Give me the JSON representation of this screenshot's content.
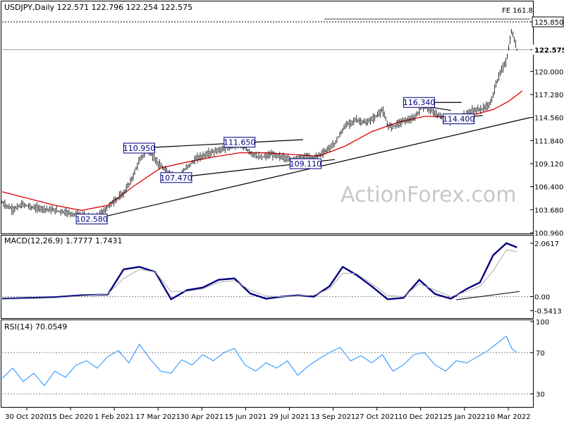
{
  "chart_data": [
    {
      "type": "candlestick",
      "header": "USDJPY,Daily  122.571 122.796 122.254 122.575",
      "ylim": [
        100.96,
        126.6
      ],
      "y_ticks": [
        100.96,
        103.68,
        106.4,
        109.12,
        111.84,
        114.56,
        117.28,
        120.0,
        122.575,
        125.85
      ],
      "y_tick_labels": [
        "100.960",
        "103.680",
        "106.400",
        "109.120",
        "111.840",
        "114.560",
        "117.280",
        "120.000",
        "122.575",
        "125.850"
      ],
      "last_price": 122.575,
      "fe_level": 125.85,
      "fe_label": "FE 161.8",
      "watermark": "ActionForex.com",
      "price_labels": [
        {
          "text": "102.580",
          "value": 102.58,
          "t": 0.175
        },
        {
          "text": "110.950",
          "value": 110.95,
          "t": 0.265
        },
        {
          "text": "107.470",
          "value": 107.47,
          "t": 0.335
        },
        {
          "text": "111.650",
          "value": 111.65,
          "t": 0.455
        },
        {
          "text": "109.110",
          "value": 109.11,
          "t": 0.58
        },
        {
          "text": "116.340",
          "value": 116.34,
          "t": 0.795
        },
        {
          "text": "114.400",
          "value": 114.4,
          "t": 0.87
        }
      ],
      "price": [
        [
          0,
          104.5
        ],
        [
          0.02,
          103.7
        ],
        [
          0.04,
          104.3
        ],
        [
          0.06,
          103.9
        ],
        [
          0.08,
          103.8
        ],
        [
          0.1,
          103.6
        ],
        [
          0.12,
          103.4
        ],
        [
          0.14,
          103.1
        ],
        [
          0.16,
          102.9
        ],
        [
          0.175,
          102.6
        ],
        [
          0.19,
          103.4
        ],
        [
          0.21,
          104.6
        ],
        [
          0.23,
          105.6
        ],
        [
          0.245,
          107.2
        ],
        [
          0.26,
          109.5
        ],
        [
          0.275,
          110.7
        ],
        [
          0.29,
          109.6
        ],
        [
          0.305,
          108.5
        ],
        [
          0.32,
          107.9
        ],
        [
          0.335,
          107.6
        ],
        [
          0.35,
          108.7
        ],
        [
          0.37,
          109.8
        ],
        [
          0.39,
          110.3
        ],
        [
          0.41,
          110.7
        ],
        [
          0.43,
          111.1
        ],
        [
          0.45,
          111.5
        ],
        [
          0.47,
          110.4
        ],
        [
          0.49,
          109.8
        ],
        [
          0.51,
          110.2
        ],
        [
          0.53,
          109.9
        ],
        [
          0.55,
          109.6
        ],
        [
          0.57,
          109.9
        ],
        [
          0.59,
          109.8
        ],
        [
          0.61,
          110.5
        ],
        [
          0.63,
          111.5
        ],
        [
          0.65,
          113.6
        ],
        [
          0.67,
          114.3
        ],
        [
          0.69,
          113.9
        ],
        [
          0.71,
          114.8
        ],
        [
          0.72,
          115.5
        ],
        [
          0.73,
          113.6
        ],
        [
          0.74,
          113.5
        ],
        [
          0.76,
          114.2
        ],
        [
          0.78,
          114.4
        ],
        [
          0.795,
          115.9
        ],
        [
          0.81,
          115.6
        ],
        [
          0.83,
          114.6
        ],
        [
          0.85,
          114.0
        ],
        [
          0.87,
          114.6
        ],
        [
          0.89,
          115.4
        ],
        [
          0.91,
          115.6
        ],
        [
          0.925,
          116.2
        ],
        [
          0.935,
          118.4
        ],
        [
          0.945,
          120.1
        ],
        [
          0.955,
          121.2
        ],
        [
          0.965,
          124.8
        ],
        [
          0.975,
          122.6
        ]
      ],
      "ma": [
        [
          0,
          105.8
        ],
        [
          0.05,
          105.0
        ],
        [
          0.1,
          104.2
        ],
        [
          0.15,
          103.6
        ],
        [
          0.2,
          104.2
        ],
        [
          0.25,
          106.5
        ],
        [
          0.3,
          108.6
        ],
        [
          0.35,
          109.3
        ],
        [
          0.4,
          109.9
        ],
        [
          0.45,
          110.4
        ],
        [
          0.5,
          110.4
        ],
        [
          0.55,
          110.2
        ],
        [
          0.6,
          110.0
        ],
        [
          0.65,
          111.2
        ],
        [
          0.7,
          112.9
        ],
        [
          0.75,
          114.0
        ],
        [
          0.8,
          114.7
        ],
        [
          0.85,
          114.6
        ],
        [
          0.9,
          115.0
        ],
        [
          0.93,
          115.5
        ],
        [
          0.96,
          116.5
        ],
        [
          0.985,
          117.7
        ]
      ],
      "trendlines": [
        [
          [
            0.175,
            102.6
          ],
          [
            1.0,
            114.56
          ]
        ],
        [
          [
            0.26,
            110.95
          ],
          [
            0.57,
            111.95
          ]
        ],
        [
          [
            0.32,
            107.4
          ],
          [
            0.63,
            109.6
          ]
        ],
        [
          [
            0.78,
            116.34
          ],
          [
            0.87,
            116.34
          ]
        ],
        [
          [
            0.8,
            115.9
          ],
          [
            0.85,
            115.4
          ]
        ],
        [
          [
            0.84,
            114.4
          ],
          [
            0.91,
            114.8
          ]
        ]
      ],
      "x_ticks": [
        "30 Oct 2020",
        "15 Dec 2020",
        "1 Feb 2021",
        "17 Mar 2021",
        "30 Apr 2021",
        "15 Jun 2021",
        "29 Jul 2021",
        "13 Sep 2021",
        "27 Oct 2021",
        "10 Dec 2021",
        "25 Jan 2022",
        "10 Mar 2022"
      ],
      "colors": {
        "price": "#000000",
        "ma": "#e00000"
      }
    },
    {
      "type": "line",
      "header": "MACD(12,26,9) 1.7777 1.7431",
      "ylim": [
        -0.8,
        2.3
      ],
      "y_tick_labels": [
        "2.0617",
        "0.00",
        "-0.5413"
      ],
      "y_ticks": [
        2.0617,
        0.0,
        -0.5413
      ],
      "series": [
        {
          "values": [
            [
              0,
              -0.08
            ],
            [
              0.05,
              -0.05
            ],
            [
              0.1,
              -0.02
            ],
            [
              0.15,
              0.05
            ],
            [
              0.2,
              0.08
            ],
            [
              0.23,
              1.05
            ],
            [
              0.26,
              1.15
            ],
            [
              0.29,
              0.95
            ],
            [
              0.32,
              -0.1
            ],
            [
              0.35,
              0.25
            ],
            [
              0.38,
              0.35
            ],
            [
              0.41,
              0.65
            ],
            [
              0.44,
              0.7
            ],
            [
              0.47,
              0.12
            ],
            [
              0.5,
              -0.08
            ],
            [
              0.53,
              0.0
            ],
            [
              0.56,
              0.05
            ],
            [
              0.59,
              0.0
            ],
            [
              0.62,
              0.4
            ],
            [
              0.645,
              1.15
            ],
            [
              0.67,
              0.85
            ],
            [
              0.7,
              0.4
            ],
            [
              0.73,
              -0.1
            ],
            [
              0.76,
              -0.05
            ],
            [
              0.79,
              0.65
            ],
            [
              0.82,
              0.1
            ],
            [
              0.85,
              -0.08
            ],
            [
              0.88,
              0.3
            ],
            [
              0.905,
              0.55
            ],
            [
              0.93,
              1.6
            ],
            [
              0.955,
              2.06
            ],
            [
              0.975,
              1.9
            ]
          ],
          "color": "#000080"
        },
        {
          "values": [
            [
              0,
              -0.1
            ],
            [
              0.05,
              -0.08
            ],
            [
              0.1,
              -0.05
            ],
            [
              0.15,
              0.02
            ],
            [
              0.2,
              0.1
            ],
            [
              0.23,
              0.7
            ],
            [
              0.26,
              1.05
            ],
            [
              0.29,
              0.95
            ],
            [
              0.32,
              0.2
            ],
            [
              0.35,
              0.2
            ],
            [
              0.38,
              0.3
            ],
            [
              0.41,
              0.55
            ],
            [
              0.44,
              0.62
            ],
            [
              0.47,
              0.25
            ],
            [
              0.5,
              0.02
            ],
            [
              0.53,
              0.0
            ],
            [
              0.56,
              0.03
            ],
            [
              0.59,
              0.05
            ],
            [
              0.62,
              0.3
            ],
            [
              0.645,
              0.9
            ],
            [
              0.67,
              0.9
            ],
            [
              0.7,
              0.5
            ],
            [
              0.73,
              0.05
            ],
            [
              0.76,
              0.0
            ],
            [
              0.79,
              0.5
            ],
            [
              0.82,
              0.25
            ],
            [
              0.85,
              0.0
            ],
            [
              0.88,
              0.2
            ],
            [
              0.905,
              0.4
            ],
            [
              0.93,
              1.0
            ],
            [
              0.955,
              1.8
            ],
            [
              0.975,
              1.74
            ]
          ],
          "color": "#aaaaaa"
        }
      ],
      "trendline": [
        [
          0.86,
          -0.12
        ],
        [
          0.98,
          0.2
        ]
      ]
    },
    {
      "type": "line",
      "header": "RSI(14) 70.0549",
      "ylim": [
        18,
        100
      ],
      "y_tick_labels": [
        "100",
        "70",
        "30"
      ],
      "y_ticks": [
        100,
        70,
        30
      ],
      "series": [
        {
          "values": [
            [
              0,
              45
            ],
            [
              0.02,
              55
            ],
            [
              0.04,
              42
            ],
            [
              0.06,
              50
            ],
            [
              0.08,
              38
            ],
            [
              0.1,
              52
            ],
            [
              0.12,
              46
            ],
            [
              0.14,
              58
            ],
            [
              0.16,
              62
            ],
            [
              0.18,
              55
            ],
            [
              0.2,
              66
            ],
            [
              0.22,
              72
            ],
            [
              0.24,
              60
            ],
            [
              0.26,
              78
            ],
            [
              0.28,
              64
            ],
            [
              0.3,
              52
            ],
            [
              0.32,
              50
            ],
            [
              0.34,
              63
            ],
            [
              0.36,
              58
            ],
            [
              0.38,
              68
            ],
            [
              0.4,
              62
            ],
            [
              0.42,
              70
            ],
            [
              0.44,
              74
            ],
            [
              0.46,
              58
            ],
            [
              0.48,
              52
            ],
            [
              0.5,
              60
            ],
            [
              0.52,
              55
            ],
            [
              0.54,
              62
            ],
            [
              0.56,
              48
            ],
            [
              0.58,
              57
            ],
            [
              0.6,
              64
            ],
            [
              0.62,
              70
            ],
            [
              0.64,
              75
            ],
            [
              0.66,
              62
            ],
            [
              0.68,
              67
            ],
            [
              0.7,
              60
            ],
            [
              0.72,
              68
            ],
            [
              0.74,
              52
            ],
            [
              0.76,
              58
            ],
            [
              0.78,
              68
            ],
            [
              0.8,
              70
            ],
            [
              0.82,
              58
            ],
            [
              0.84,
              52
            ],
            [
              0.86,
              62
            ],
            [
              0.88,
              60
            ],
            [
              0.9,
              66
            ],
            [
              0.92,
              72
            ],
            [
              0.94,
              80
            ],
            [
              0.955,
              86
            ],
            [
              0.965,
              74
            ],
            [
              0.975,
              70
            ]
          ],
          "color": "#1e90ff"
        }
      ]
    }
  ]
}
